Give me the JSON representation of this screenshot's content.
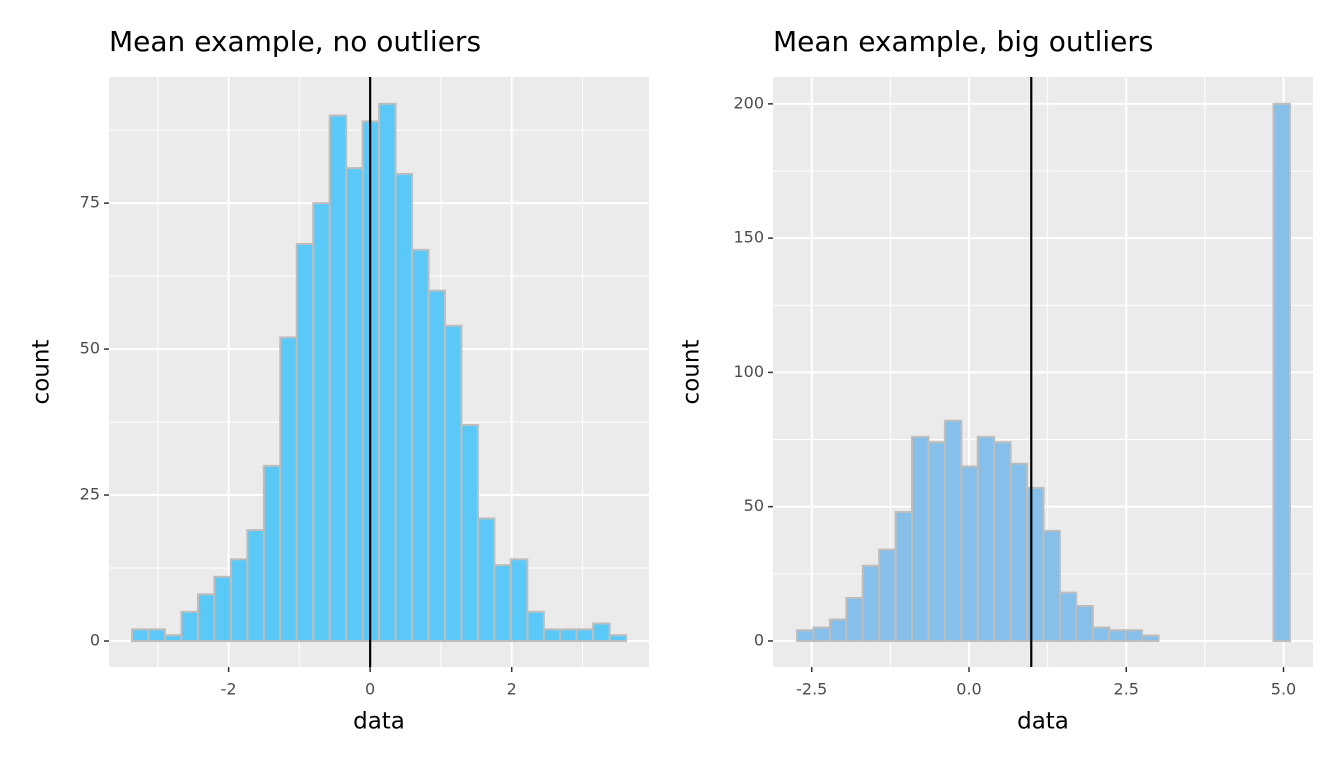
{
  "chart_data": [
    {
      "type": "histogram",
      "title": "Mean example, no outliers",
      "xlabel": "data",
      "ylabel": "count",
      "bins": [
        -3.364,
        -3.131,
        -2.899,
        -2.666,
        -2.433,
        -2.201,
        -1.968,
        -1.735,
        -1.502,
        -1.27,
        -1.037,
        -0.804,
        -0.572,
        -0.339,
        -0.106,
        0.127,
        0.359,
        0.592,
        0.825,
        1.057,
        1.29,
        1.523,
        1.756,
        1.988,
        2.221,
        2.454,
        2.686,
        2.919,
        3.152,
        3.384,
        3.617
      ],
      "values": [
        2,
        2,
        1,
        5,
        8,
        11,
        14,
        19,
        30,
        52,
        68,
        75,
        90,
        81,
        89,
        92,
        80,
        67,
        60,
        54,
        37,
        21,
        13,
        14,
        5,
        2,
        2,
        2,
        3,
        1
      ],
      "color": "#5ac9f8",
      "edgecolor": "#bdbdbd",
      "vline": 0,
      "vline_color": "#000000",
      "xlim": [
        -3.69,
        3.94
      ],
      "ylim": [
        -4.45,
        96.6
      ],
      "xticks": [
        -2,
        0,
        2
      ],
      "yticks": [
        0,
        25,
        50,
        75
      ],
      "grid": true
    },
    {
      "type": "histogram",
      "title": "Mean example, big outliers",
      "xlabel": "data",
      "ylabel": "count",
      "bins": [
        -2.734,
        -2.473,
        -2.212,
        -1.95,
        -1.689,
        -1.428,
        -1.167,
        -0.906,
        -0.644,
        -0.383,
        -0.122,
        0.139,
        0.4,
        0.662,
        0.923,
        1.184,
        1.445,
        1.706,
        1.968,
        2.229,
        2.49,
        2.751,
        3.012,
        3.274,
        3.535,
        3.796,
        4.057,
        4.318,
        4.58,
        4.841,
        5.102
      ],
      "values": [
        4,
        5,
        8,
        16,
        28,
        34,
        48,
        76,
        74,
        82,
        65,
        76,
        74,
        66,
        57,
        41,
        18,
        13,
        5,
        4,
        4,
        2,
        0,
        0,
        0,
        0,
        0,
        0,
        0,
        200
      ],
      "color": "#85bfea",
      "edgecolor": "#bdbdbd",
      "vline": 0.99,
      "vline_color": "#000000",
      "xlim": [
        -3.116,
        5.469
      ],
      "ylim": [
        -9.7,
        210
      ],
      "xticks": [
        -2.5,
        {
          "value": 0,
          "label": "0.0"
        },
        2.5,
        {
          "value": 5,
          "label": "5.0"
        }
      ],
      "yticks": [
        0,
        50,
        100,
        150,
        200
      ],
      "grid": true
    }
  ]
}
